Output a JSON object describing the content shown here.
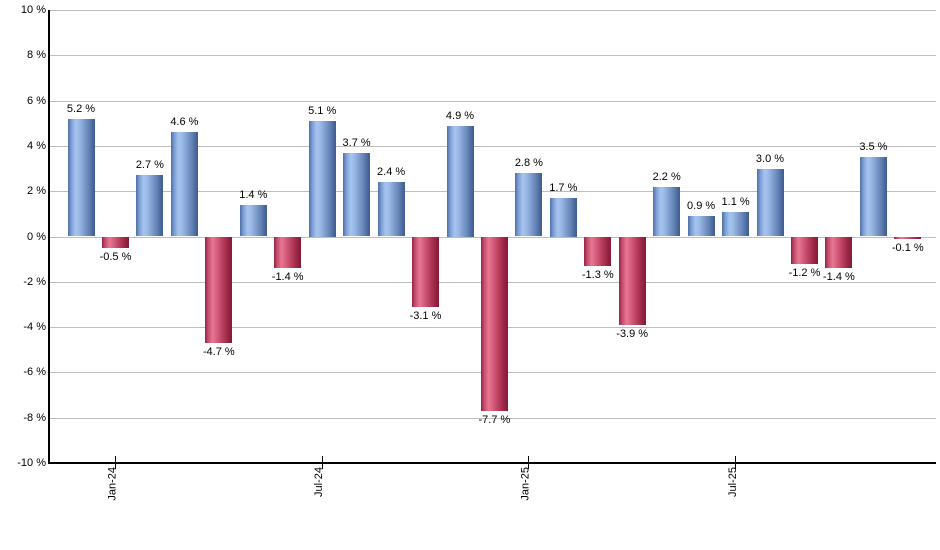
{
  "chart_data": {
    "type": "bar",
    "title": "",
    "unit": "%",
    "values": [
      5.2,
      -0.5,
      2.7,
      4.6,
      -4.7,
      1.4,
      -1.4,
      5.1,
      3.7,
      2.4,
      -3.1,
      4.9,
      -7.7,
      2.8,
      1.7,
      -1.3,
      -3.9,
      2.2,
      0.9,
      1.1,
      3.0,
      -1.2,
      -1.4,
      3.5,
      -0.1
    ],
    "value_labels": [
      "5.2 %",
      "-0.5 %",
      "2.7 %",
      "4.6 %",
      "-4.7 %",
      "1.4 %",
      "-1.4 %",
      "5.1 %",
      "3.7 %",
      "2.4 %",
      "-3.1 %",
      "4.9 %",
      "-7.7 %",
      "2.8 %",
      "1.7 %",
      "-1.3 %",
      "-3.9 %",
      "2.2 %",
      "0.9 %",
      "1.1 %",
      "3.0 %",
      "-1.2 %",
      "-1.4 %",
      "3.5 %",
      "-0.1 %"
    ],
    "x_ticks": [
      {
        "label": "Jan-24",
        "index": 1
      },
      {
        "label": "Jul-24",
        "index": 7
      },
      {
        "label": "Jan-25",
        "index": 13
      },
      {
        "label": "Jul-25",
        "index": 19
      }
    ],
    "y_ticks": [
      {
        "label": "10 %",
        "value": 10
      },
      {
        "label": "8 %",
        "value": 8
      },
      {
        "label": "6 %",
        "value": 6
      },
      {
        "label": "4 %",
        "value": 4
      },
      {
        "label": "2 %",
        "value": 2
      },
      {
        "label": "0 %",
        "value": 0
      },
      {
        "label": "-2 %",
        "value": -2
      },
      {
        "label": "-4 %",
        "value": -4
      },
      {
        "label": "-6 %",
        "value": -6
      },
      {
        "label": "-8 %",
        "value": -8
      },
      {
        "label": "-10 %",
        "value": -10
      }
    ],
    "ylim": [
      -10,
      10
    ],
    "grid": "horizontal",
    "legend": "none",
    "colors": {
      "positive_bar": "#6f93c8",
      "positive_bar_highlight": "#a6c4ef",
      "positive_bar_edge": "#3e5c8c",
      "negative_bar": "#c04663",
      "negative_bar_highlight": "#e77792",
      "negative_bar_edge": "#841b38",
      "gridline": "#bdbdbd",
      "axis": "#000000",
      "text": "#000000",
      "background": "#ffffff"
    }
  }
}
